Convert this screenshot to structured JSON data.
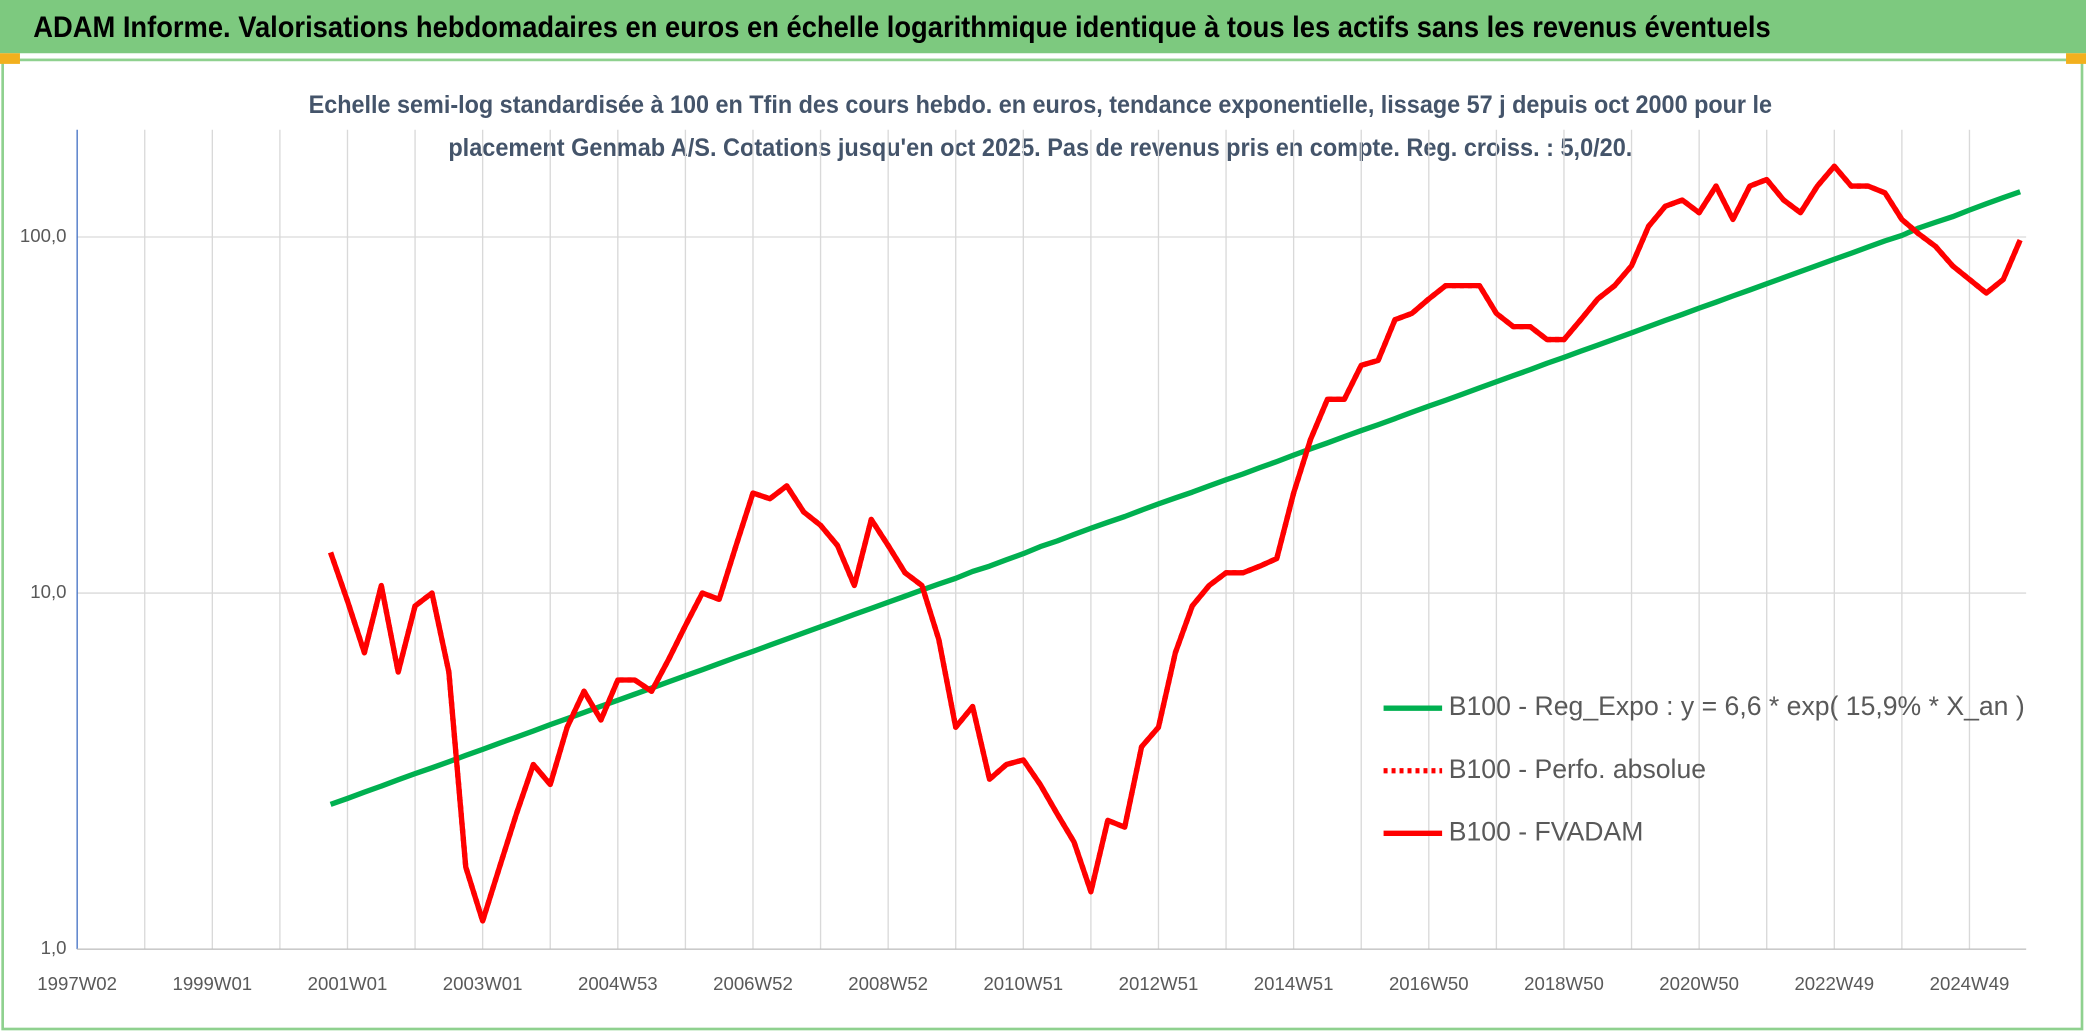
{
  "header": {
    "title": "ADAM Informe. Valorisations hebdomadaires en euros en échelle logarithmique identique à tous les actifs sans les revenus éventuels"
  },
  "chart_data": {
    "type": "line",
    "title": [
      "Echelle semi-log standardisée à 100 en Tfin des cours hebdo. en euros, tendance exponentielle, lissage 57 j depuis oct 2000 pour le",
      "placement Genmab A/S. Cotations jusqu'en oct 2025. Pas de revenus pris en compte. Reg. croiss. : 5,0/20."
    ],
    "log_scale": true,
    "grid": true,
    "legend": "right",
    "ylim": [
      1,
      200
    ],
    "yticks": [
      {
        "value": 1,
        "label": "1,0"
      },
      {
        "value": 10,
        "label": "10,0"
      },
      {
        "value": 100,
        "label": "100,0"
      }
    ],
    "categories": [
      "1997W02",
      null,
      null,
      null,
      null,
      null,
      null,
      null,
      "1999W01",
      null,
      null,
      null,
      null,
      null,
      null,
      null,
      "2001W01",
      null,
      null,
      null,
      null,
      null,
      null,
      null,
      "2003W01",
      null,
      null,
      null,
      null,
      null,
      null,
      null,
      "2004W53",
      null,
      null,
      null,
      null,
      null,
      null,
      null,
      "2006W52",
      null,
      null,
      null,
      null,
      null,
      null,
      null,
      "2008W52",
      null,
      null,
      null,
      null,
      null,
      null,
      null,
      "2010W51",
      null,
      null,
      null,
      null,
      null,
      null,
      null,
      "2012W51",
      null,
      null,
      null,
      null,
      null,
      null,
      null,
      "2014W51",
      null,
      null,
      null,
      null,
      null,
      null,
      null,
      "2016W50",
      null,
      null,
      null,
      null,
      null,
      null,
      null,
      "2018W50",
      null,
      null,
      null,
      null,
      null,
      null,
      null,
      "2020W50",
      null,
      null,
      null,
      null,
      null,
      null,
      null,
      "2022W49",
      null,
      null,
      null,
      null,
      null,
      null,
      null,
      "2024W49",
      null,
      null,
      null
    ],
    "series": [
      {
        "name": "B100 - Reg_Expo : y = 6,6 * exp( 15,9% *  X_an )",
        "color": "#00b050",
        "dash": "solid",
        "values": [
          null,
          null,
          null,
          null,
          null,
          null,
          null,
          null,
          null,
          null,
          null,
          null,
          null,
          null,
          null,
          2.55,
          2.65,
          2.76,
          2.87,
          2.99,
          3.11,
          3.23,
          3.36,
          3.5,
          3.64,
          3.79,
          3.94,
          4.1,
          4.27,
          4.44,
          4.62,
          4.81,
          5.0,
          5.2,
          5.41,
          5.63,
          5.86,
          6.09,
          6.34,
          6.6,
          6.86,
          7.14,
          7.43,
          7.73,
          8.04,
          8.37,
          8.71,
          9.06,
          9.42,
          9.8,
          10.2,
          10.6,
          11.0,
          11.5,
          11.9,
          12.4,
          12.9,
          13.5,
          14.0,
          14.6,
          15.2,
          15.8,
          16.4,
          17.1,
          17.8,
          18.5,
          19.2,
          20.0,
          20.8,
          21.6,
          22.5,
          23.4,
          24.4,
          25.4,
          26.4,
          27.5,
          28.6,
          29.7,
          30.9,
          32.2,
          33.5,
          34.8,
          36.2,
          37.7,
          39.2,
          40.8,
          42.4,
          44.2,
          45.9,
          47.8,
          49.7,
          51.7,
          53.8,
          56.0,
          58.3,
          60.6,
          63.1,
          65.6,
          68.3,
          71.0,
          73.9,
          76.9,
          80.0,
          83.2,
          86.6,
          90.0,
          93.7,
          97.5,
          101,
          106,
          110,
          114,
          119,
          124,
          129,
          134
        ]
      },
      {
        "name": "B100 - Perfo. absolue",
        "color": "#ff0000",
        "dash": "dotted",
        "values": [
          null,
          null,
          null,
          null,
          null,
          null,
          null,
          null,
          null,
          null,
          null,
          null,
          null,
          null,
          null,
          13.0,
          9.5,
          6.8,
          10.5,
          6.0,
          9.2,
          10.0,
          6.0,
          1.7,
          1.2,
          1.7,
          2.4,
          3.3,
          2.9,
          4.2,
          5.3,
          4.4,
          5.7,
          5.7,
          5.3,
          6.5,
          8.1,
          10.0,
          9.6,
          13.6,
          19.1,
          18.4,
          20.0,
          16.9,
          15.5,
          13.6,
          10.5,
          16.1,
          13.6,
          11.4,
          10.5,
          7.4,
          4.2,
          4.8,
          3.0,
          3.3,
          3.4,
          2.9,
          2.4,
          2.0,
          1.45,
          2.3,
          2.2,
          3.7,
          4.2,
          6.8,
          9.2,
          10.5,
          11.4,
          11.4,
          11.9,
          12.5,
          19.1,
          27,
          35,
          35,
          43.6,
          45,
          58.6,
          61,
          67,
          73,
          73,
          73,
          61,
          56,
          56,
          51.5,
          51.5,
          58.6,
          67,
          73,
          83,
          107,
          122,
          127,
          117,
          139,
          112,
          139,
          145,
          127,
          117,
          139,
          158,
          139,
          139,
          133,
          112,
          102,
          94,
          83,
          76,
          69.6,
          76,
          98
        ]
      },
      {
        "name": "B100 - FVADAM",
        "color": "#ff0000",
        "dash": "solid",
        "values": [
          null,
          null,
          null,
          null,
          null,
          null,
          null,
          null,
          null,
          null,
          null,
          null,
          null,
          null,
          null,
          13.0,
          9.5,
          6.8,
          10.5,
          6.0,
          9.2,
          10.0,
          6.0,
          1.7,
          1.2,
          1.7,
          2.4,
          3.3,
          2.9,
          4.2,
          5.3,
          4.4,
          5.7,
          5.7,
          5.3,
          6.5,
          8.1,
          10.0,
          9.6,
          13.6,
          19.1,
          18.4,
          20.0,
          16.9,
          15.5,
          13.6,
          10.5,
          16.1,
          13.6,
          11.4,
          10.5,
          7.4,
          4.2,
          4.8,
          3.0,
          3.3,
          3.4,
          2.9,
          2.4,
          2.0,
          1.45,
          2.3,
          2.2,
          3.7,
          4.2,
          6.8,
          9.2,
          10.5,
          11.4,
          11.4,
          11.9,
          12.5,
          19.1,
          27,
          35,
          35,
          43.6,
          45,
          58.6,
          61,
          67,
          73,
          73,
          73,
          61,
          56,
          56,
          51.5,
          51.5,
          58.6,
          67,
          73,
          83,
          107,
          122,
          127,
          117,
          139,
          112,
          139,
          145,
          127,
          117,
          139,
          158,
          139,
          139,
          133,
          112,
          102,
          94,
          83,
          76,
          69.6,
          76,
          98
        ]
      }
    ]
  }
}
